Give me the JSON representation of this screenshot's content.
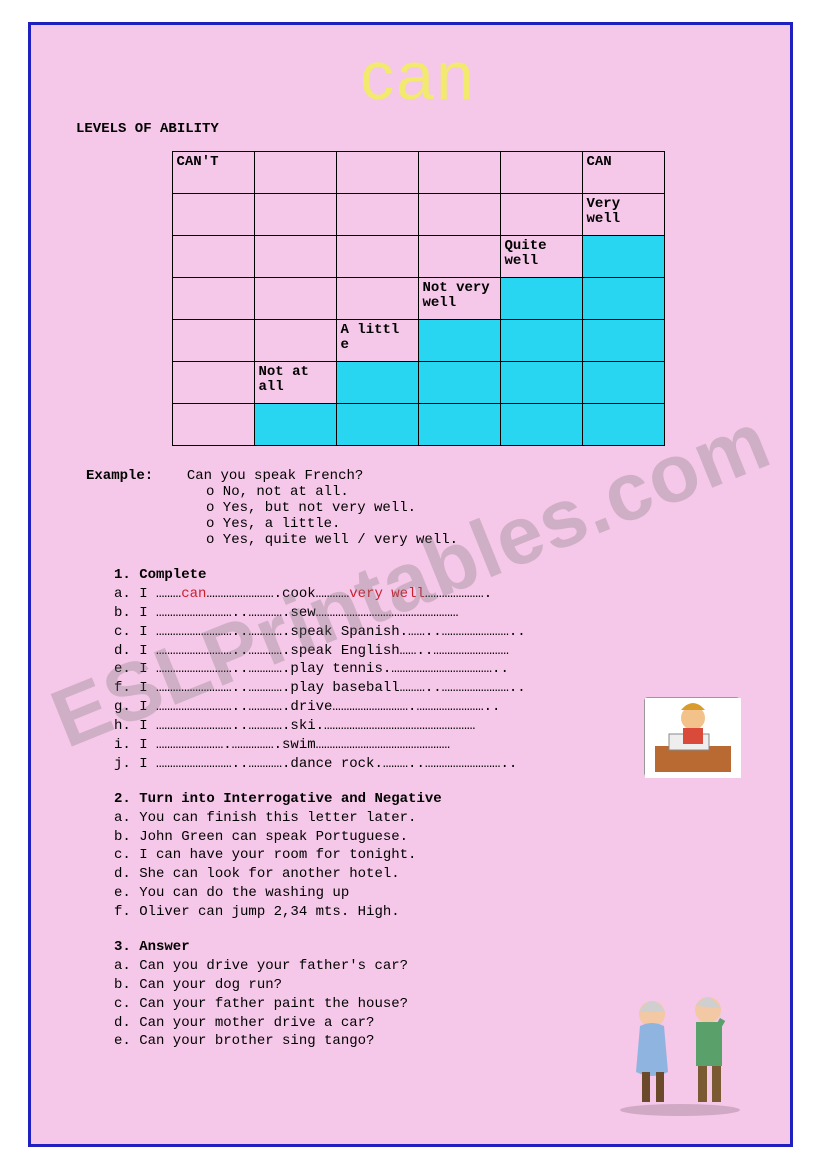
{
  "title": "can",
  "subtitle": "LEVELS OF ABILITY",
  "table": {
    "cols": 6,
    "rows": [
      [
        {
          "t": "CAN'T"
        },
        {
          "t": ""
        },
        {
          "t": ""
        },
        {
          "t": ""
        },
        {
          "t": ""
        },
        {
          "t": "CAN"
        }
      ],
      [
        {
          "t": ""
        },
        {
          "t": ""
        },
        {
          "t": ""
        },
        {
          "t": ""
        },
        {
          "t": ""
        },
        {
          "t": "Very well"
        }
      ],
      [
        {
          "t": ""
        },
        {
          "t": ""
        },
        {
          "t": ""
        },
        {
          "t": ""
        },
        {
          "t": "Quite well"
        },
        {
          "t": "",
          "f": true
        }
      ],
      [
        {
          "t": ""
        },
        {
          "t": ""
        },
        {
          "t": ""
        },
        {
          "t": "Not very well"
        },
        {
          "t": "",
          "f": true
        },
        {
          "t": "",
          "f": true
        }
      ],
      [
        {
          "t": ""
        },
        {
          "t": ""
        },
        {
          "t": "A littl e"
        },
        {
          "t": "",
          "f": true
        },
        {
          "t": "",
          "f": true
        },
        {
          "t": "",
          "f": true
        }
      ],
      [
        {
          "t": ""
        },
        {
          "t": "Not at all"
        },
        {
          "t": "",
          "f": true
        },
        {
          "t": "",
          "f": true
        },
        {
          "t": "",
          "f": true
        },
        {
          "t": "",
          "f": true
        }
      ],
      [
        {
          "t": ""
        },
        {
          "t": "",
          "f": true
        },
        {
          "t": "",
          "f": true
        },
        {
          "t": "",
          "f": true
        },
        {
          "t": "",
          "f": true
        },
        {
          "t": "",
          "f": true
        }
      ]
    ],
    "fill_color": "#29d6f2"
  },
  "example": {
    "label": "Example:",
    "question": "Can you speak French?",
    "answers": [
      "o No, not at all.",
      "o Yes, but not very well.",
      "o Yes, a little.",
      "o Yes, quite well / very well."
    ]
  },
  "ex1": {
    "head": "1. Complete",
    "items": [
      {
        "pre": "a. I ………",
        "r1": "can",
        "mid": "…………………….cook…………",
        "r2": "very well",
        "post": "…………………."
      },
      {
        "line": "b. I ………………………..………….sew……………………………………………"
      },
      {
        "line": "c. I ………………………..………….speak Spanish.……..…………………….."
      },
      {
        "line": "d. I ………………………..………….speak English……..………………………"
      },
      {
        "line": "e. I ………………………..………….play tennis.……………………………….."
      },
      {
        "line": "f. I ………………………..………….play baseball………..…………………….."
      },
      {
        "line": "g. I ………………………..………….drive……………………….…………………….."
      },
      {
        "line": "h. I ………………………..………….ski.………………………………………………"
      },
      {
        "line": "i. I …………………….…………….swim…………………………………………"
      },
      {
        "line": "j. I ………………………..………….dance rock.………..……………………….."
      }
    ]
  },
  "ex2": {
    "head": "2. Turn into Interrogative and Negative",
    "items": [
      "a. You can finish this letter later.",
      "b. John Green can speak Portuguese.",
      "c. I can have your room for tonight.",
      "d. She can look for another hotel.",
      "e. You can do the washing up",
      "f. Oliver can jump 2,34 mts. High."
    ]
  },
  "ex3": {
    "head": "3. Answer",
    "items": [
      "a. Can you drive your father's car?",
      "b. Can your dog run?",
      "c. Can your father paint the house?",
      "d. Can your mother drive a car?",
      "e. Can your brother sing tango?"
    ]
  },
  "watermark": "ESLPrintables.com",
  "colors": {
    "page_bg": "#f5c7e8",
    "border": "#2020c0",
    "title": "#f2e96f",
    "answer_red": "#cc2030",
    "fill": "#29d6f2"
  }
}
